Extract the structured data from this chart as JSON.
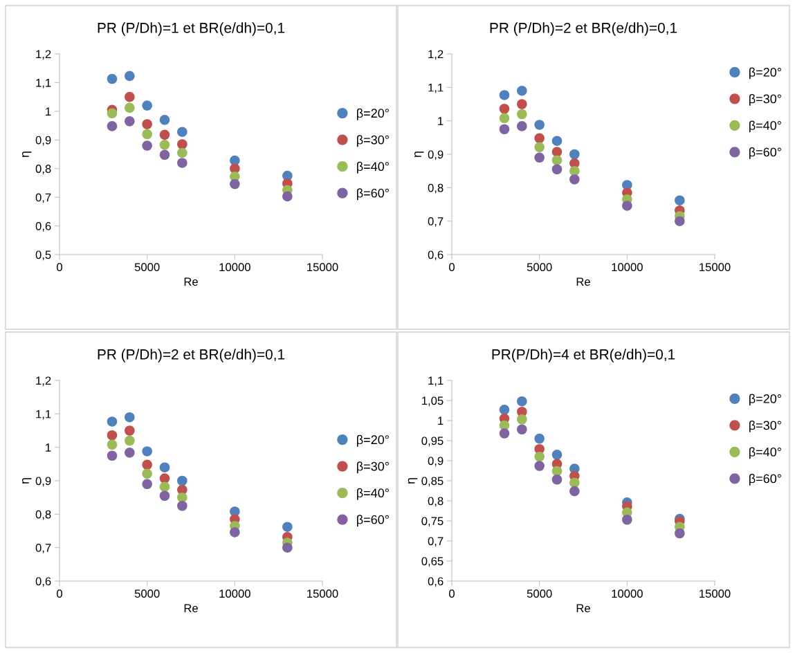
{
  "chart_data": [
    {
      "type": "scatter",
      "title": "PR (P/Dh)=1 et BR(e/dh)=0,1",
      "xlabel": "Re",
      "ylabel": "η",
      "x": [
        3000,
        4000,
        5000,
        6000,
        7000,
        10000,
        13000
      ],
      "xlim": [
        0,
        15000
      ],
      "xticks": [
        0,
        5000,
        10000,
        15000
      ],
      "ylim": [
        0.5,
        1.2
      ],
      "yticks": [
        {
          "value": 0.5,
          "label": "0,5"
        },
        {
          "value": 0.6,
          "label": "0,6"
        },
        {
          "value": 0.7,
          "label": "0,7"
        },
        {
          "value": 0.8,
          "label": "0,8"
        },
        {
          "value": 0.9,
          "label": "0,9"
        },
        {
          "value": 1,
          "label": "1"
        },
        {
          "value": 1.1,
          "label": "1,1"
        },
        {
          "value": 1.2,
          "label": "1,2"
        }
      ],
      "grid": false,
      "legend": "right",
      "marker": "circle",
      "series": [
        {
          "name": "β=20°",
          "color": "#4f81bd",
          "values": [
            1.113,
            1.123,
            1.02,
            0.97,
            0.928,
            0.828,
            0.775
          ]
        },
        {
          "name": "β=30°",
          "color": "#c0504d",
          "values": [
            1.005,
            1.05,
            0.955,
            0.918,
            0.885,
            0.8,
            0.748
          ]
        },
        {
          "name": "β=40°",
          "color": "#9bbb59",
          "values": [
            0.993,
            1.012,
            0.92,
            0.883,
            0.855,
            0.772,
            0.725
          ]
        },
        {
          "name": "β=60°",
          "color": "#8064a2",
          "values": [
            0.948,
            0.965,
            0.88,
            0.848,
            0.82,
            0.746,
            0.703
          ]
        }
      ]
    },
    {
      "type": "scatter",
      "title": "PR (P/Dh)=2 et BR(e/dh)=0,1",
      "xlabel": "Re",
      "ylabel": "η",
      "x": [
        3000,
        4000,
        5000,
        6000,
        7000,
        10000,
        13000
      ],
      "xlim": [
        0,
        15000
      ],
      "xticks": [
        0,
        5000,
        10000,
        15000
      ],
      "ylim": [
        0.6,
        1.2
      ],
      "yticks": [
        {
          "value": 0.6,
          "label": "0,6"
        },
        {
          "value": 0.7,
          "label": "0,7"
        },
        {
          "value": 0.8,
          "label": "0,8"
        },
        {
          "value": 0.9,
          "label": "0,9"
        },
        {
          "value": 1,
          "label": "1"
        },
        {
          "value": 1.1,
          "label": "1,1"
        },
        {
          "value": 1.2,
          "label": "1,2"
        }
      ],
      "grid": false,
      "legend": "top right",
      "marker": "circle",
      "series": [
        {
          "name": "β=20°",
          "color": "#4f81bd",
          "values": [
            1.077,
            1.09,
            0.988,
            0.94,
            0.9,
            0.808,
            0.762
          ]
        },
        {
          "name": "β=30°",
          "color": "#c0504d",
          "values": [
            1.036,
            1.05,
            0.948,
            0.907,
            0.873,
            0.785,
            0.732
          ]
        },
        {
          "name": "β=40°",
          "color": "#9bbb59",
          "values": [
            1.008,
            1.02,
            0.921,
            0.882,
            0.85,
            0.765,
            0.715
          ]
        },
        {
          "name": "β=60°",
          "color": "#8064a2",
          "values": [
            0.975,
            0.984,
            0.89,
            0.855,
            0.825,
            0.746,
            0.7
          ]
        }
      ]
    },
    {
      "type": "scatter",
      "title": "PR (P/Dh)=2 et BR(e/dh)=0,1",
      "xlabel": "Re",
      "ylabel": "η",
      "x": [
        3000,
        4000,
        5000,
        6000,
        7000,
        10000,
        13000
      ],
      "xlim": [
        0,
        15000
      ],
      "xticks": [
        0,
        5000,
        10000,
        15000
      ],
      "ylim": [
        0.6,
        1.2
      ],
      "yticks": [
        {
          "value": 0.6,
          "label": "0,6"
        },
        {
          "value": 0.7,
          "label": "0,7"
        },
        {
          "value": 0.8,
          "label": "0,8"
        },
        {
          "value": 0.9,
          "label": "0,9"
        },
        {
          "value": 1,
          "label": "1"
        },
        {
          "value": 1.1,
          "label": "1,1"
        },
        {
          "value": 1.2,
          "label": "1,2"
        }
      ],
      "grid": false,
      "legend": "right",
      "marker": "circle",
      "series": [
        {
          "name": "β=20°",
          "color": "#4f81bd",
          "values": [
            1.077,
            1.09,
            0.988,
            0.94,
            0.9,
            0.808,
            0.762
          ]
        },
        {
          "name": "β=30°",
          "color": "#c0504d",
          "values": [
            1.036,
            1.05,
            0.948,
            0.907,
            0.873,
            0.785,
            0.732
          ]
        },
        {
          "name": "β=40°",
          "color": "#9bbb59",
          "values": [
            1.008,
            1.02,
            0.921,
            0.882,
            0.85,
            0.765,
            0.715
          ]
        },
        {
          "name": "β=60°",
          "color": "#8064a2",
          "values": [
            0.975,
            0.984,
            0.89,
            0.855,
            0.825,
            0.746,
            0.7
          ]
        }
      ]
    },
    {
      "type": "scatter",
      "title": "PR(P/Dh)=4 et BR(e/dh)=0,1",
      "xlabel": "Re",
      "ylabel": "η",
      "x": [
        3000,
        4000,
        5000,
        6000,
        7000,
        10000,
        13000
      ],
      "xlim": [
        0,
        15000
      ],
      "xticks": [
        0,
        5000,
        10000,
        15000
      ],
      "ylim": [
        0.6,
        1.1
      ],
      "yticks": [
        {
          "value": 0.6,
          "label": "0,6"
        },
        {
          "value": 0.65,
          "label": "0,65"
        },
        {
          "value": 0.7,
          "label": "0,7"
        },
        {
          "value": 0.75,
          "label": "0,75"
        },
        {
          "value": 0.8,
          "label": "0,8"
        },
        {
          "value": 0.85,
          "label": "0,85"
        },
        {
          "value": 0.9,
          "label": "0,9"
        },
        {
          "value": 0.95,
          "label": "0,95"
        },
        {
          "value": 1,
          "label": "1"
        },
        {
          "value": 1.05,
          "label": "1,05"
        },
        {
          "value": 1.1,
          "label": "1,1"
        }
      ],
      "grid": false,
      "legend": "top right",
      "marker": "circle",
      "series": [
        {
          "name": "β=20°",
          "color": "#4f81bd",
          "values": [
            1.027,
            1.048,
            0.955,
            0.915,
            0.88,
            0.796,
            0.755
          ]
        },
        {
          "name": "β=30°",
          "color": "#c0504d",
          "values": [
            1.005,
            1.022,
            0.929,
            0.892,
            0.862,
            0.786,
            0.749
          ]
        },
        {
          "name": "β=40°",
          "color": "#9bbb59",
          "values": [
            0.988,
            1.003,
            0.91,
            0.874,
            0.845,
            0.771,
            0.735
          ]
        },
        {
          "name": "β=60°",
          "color": "#8064a2",
          "values": [
            0.968,
            0.978,
            0.887,
            0.853,
            0.824,
            0.753,
            0.719
          ]
        }
      ]
    }
  ]
}
